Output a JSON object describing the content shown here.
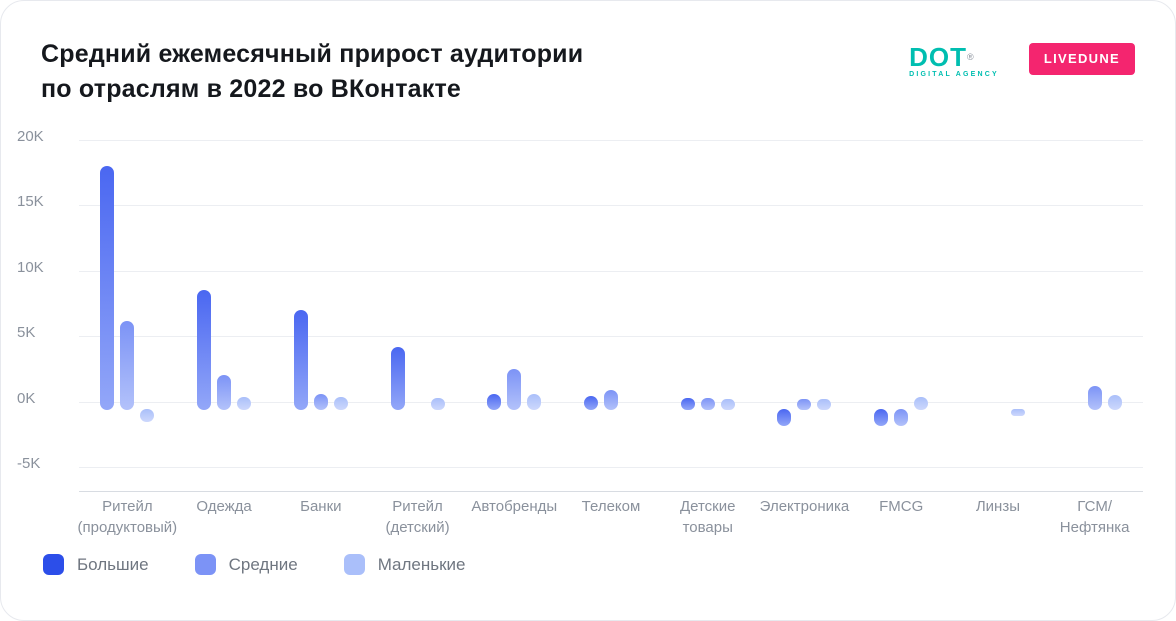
{
  "title": {
    "line1": "Средний ежемесячный прирост аудитории",
    "line2": "по отраслям в 2022 во ВКонтакте"
  },
  "logos": {
    "dot": {
      "text": "DOT",
      "reg": "®",
      "sub": "DIGITAL AGENCY",
      "color": "#00beb0"
    },
    "livedune": {
      "text": "LIVEDUNE",
      "bg": "#f4256f"
    }
  },
  "chart_data": {
    "type": "bar",
    "title": "Средний ежемесячный прирост аудитории по отраслям в 2022 во ВКонтакте",
    "categories": [
      "Ритейл\n(продуктовый)",
      "Одежда",
      "Банки",
      "Ритейл\n(детский)",
      "Автобренды",
      "Телеком",
      "Детские\nтовары",
      "Электроника",
      "FMCG",
      "Линзы",
      "ГСМ/\nНефтянка"
    ],
    "series": [
      {
        "name": "Большие",
        "color": "#2c4ee9",
        "grad": [
          "#4a67f1",
          "#93a7f8"
        ],
        "values": [
          18,
          8.5,
          7,
          4.2,
          0.6,
          0.45,
          0.3,
          -1.3,
          -1.3,
          0,
          0
        ]
      },
      {
        "name": "Средние",
        "color": "#7c93f6",
        "grad": [
          "#7c93f6",
          "#b3c2fa"
        ],
        "values": [
          6.2,
          2,
          0.55,
          0,
          2.5,
          0.9,
          0.25,
          0.2,
          -1.3,
          0,
          1.2
        ]
      },
      {
        "name": "Маленькие",
        "color": "#aabffa",
        "grad": [
          "#aabffa",
          "#cdd8fc"
        ],
        "values": [
          -1,
          0.35,
          0.35,
          0.25,
          0.6,
          0,
          0.15,
          0.1,
          0.35,
          -0.2,
          0.5
        ]
      }
    ],
    "y_ticks": [
      {
        "label": "20K",
        "value": 20
      },
      {
        "label": "15K",
        "value": 15
      },
      {
        "label": "10K",
        "value": 10
      },
      {
        "label": "5K",
        "value": 5
      },
      {
        "label": "0K",
        "value": 0
      },
      {
        "label": "-5K",
        "value": -5
      }
    ],
    "ylim": [
      -5,
      20
    ],
    "xlabel": "",
    "ylabel": "",
    "grid": true,
    "legend_position": "bottom-left"
  }
}
